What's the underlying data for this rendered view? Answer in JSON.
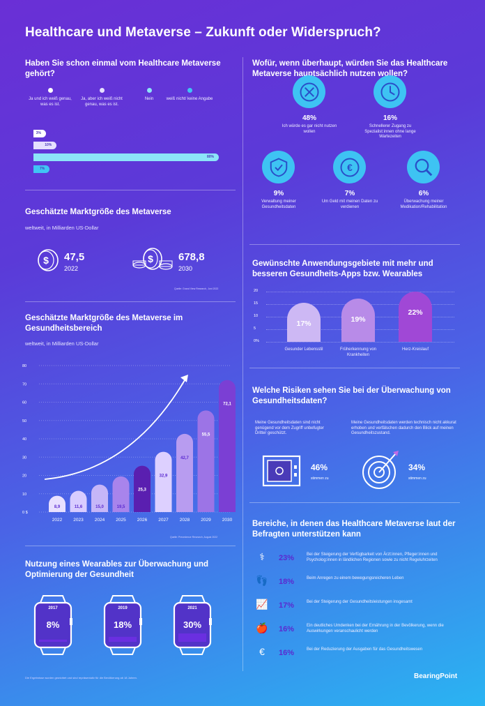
{
  "title": "Healthcare und Metaverse – Zukunft oder Widerspruch?",
  "brand": "BearingPoint",
  "awareness": {
    "title": "Haben Sie schon einmal vom Healthcare Metaverse gehört?",
    "legend": [
      {
        "label": "Ja und ich weiß genau, was es ist.",
        "color": "#ffffff"
      },
      {
        "label": "Ja, aber ich weiß nicht genau, was es ist.",
        "color": "#e6e0ff"
      },
      {
        "label": "Nein",
        "color": "#8ce4f8"
      },
      {
        "label": "weiß nicht/ keine Angabe",
        "color": "#40c4f4"
      }
    ],
    "chart_data": {
      "type": "bar",
      "orientation": "horizontal",
      "categories": [
        "Ja und ich weiß genau, was es ist.",
        "Ja, aber ich weiß nicht genau, was es ist.",
        "Nein",
        "weiß nicht/ keine Angabe"
      ],
      "values": [
        3,
        10,
        80,
        7
      ],
      "labels": [
        "3%",
        "10%",
        "80%",
        "7%"
      ]
    }
  },
  "usage": {
    "title": "Wofür, wenn überhaupt, würden Sie das Healthcare Metaverse hauptsächlich nutzen wollen?",
    "items": [
      {
        "pct": "48%",
        "desc": "Ich würde es gar nicht nutzen wollen",
        "icon": "x-icon"
      },
      {
        "pct": "16%",
        "desc": "Schnellerer Zugang zu Spezialist:innen ohne lange Wartezeiten",
        "icon": "clock-icon"
      },
      {
        "pct": "9%",
        "desc": "Verwaltung meiner Gesundheitsdaten",
        "icon": "shield-check-icon"
      },
      {
        "pct": "7%",
        "desc": "Um Geld mit meinen Daten zu verdienen",
        "icon": "euro-coin-icon"
      },
      {
        "pct": "6%",
        "desc": "Überwachung meiner Medikation/Rehabilitation",
        "icon": "magnifier-icon"
      }
    ]
  },
  "market": {
    "title": "Geschätzte Marktgröße des Metaverse",
    "sub": "weltweit, in Milliarden US-Dollar",
    "items": [
      {
        "value": "47,5",
        "year": "2022"
      },
      {
        "value": "678,8",
        "year": "2030"
      }
    ],
    "source": "Quelle: Grand View Research, Juni 2022"
  },
  "apps": {
    "title": "Gewünschte Anwendungsgebiete mit mehr und besseren Gesundheits-Apps bzw. Wearables",
    "chart_data": {
      "type": "bar",
      "categories": [
        "Gesunder Lebensstil",
        "Früherkennung von Krankheiten",
        "Herz-Kreislauf"
      ],
      "values": [
        17,
        19,
        22
      ],
      "labels": [
        "17%",
        "19%",
        "22%"
      ],
      "yticks": [
        "20",
        "15",
        "10",
        "5",
        "0%"
      ],
      "ylim": [
        0,
        22
      ]
    }
  },
  "health_market": {
    "title": "Geschätzte Marktgröße des Metaverse im Gesundheitsbereich",
    "sub": "weltweit, in Milliarden US-Dollar",
    "source": "Quelle: Precedence Research, August 2022",
    "chart_data": {
      "type": "bar",
      "categories": [
        "2022",
        "2023",
        "2024",
        "2025",
        "2026",
        "2027",
        "2028",
        "2029",
        "2030"
      ],
      "values": [
        8.9,
        11.6,
        15.0,
        19.5,
        25.3,
        32.9,
        42.7,
        55.5,
        72.1
      ],
      "labels": [
        "8,9",
        "11,6",
        "15,0",
        "19,5",
        "25,3",
        "32,9",
        "42,7",
        "55,5",
        "72,1"
      ],
      "yticks": [
        "80",
        "70",
        "60",
        "50",
        "40",
        "30",
        "20",
        "10",
        "0 $"
      ],
      "ylim": [
        0,
        80
      ],
      "colors": [
        "#e8e0ff",
        "#d8ccff",
        "#c6b6f8",
        "#a884ec",
        "#5a1fb0",
        "#ddd0ff",
        "#b89cf0",
        "#9c74e6",
        "#7b3fd4"
      ]
    }
  },
  "risks": {
    "title": "Welche Risiken sehen Sie bei der Überwachung von Gesundheitsdaten?",
    "items": [
      {
        "text": "Meine Gesundheitsdaten sind nicht genügend vor dem Zugriff unbefugter Dritter geschützt.",
        "pct": "46%",
        "sub": "stimmen zu",
        "icon": "safe-icon"
      },
      {
        "text": "Meine Gesundheitsdaten werden technisch nicht akkurat erhoben und verfälschen dadurch den Blick auf meinen Gesundheitszustand.",
        "pct": "34%",
        "sub": "stimmen zu",
        "icon": "target-icon"
      }
    ]
  },
  "wearable": {
    "title": "Nutzung eines Wearables zur Überwachung und Optimierung der Gesundheit",
    "chart_data": {
      "type": "bar",
      "categories": [
        "2017",
        "2019",
        "2021"
      ],
      "values": [
        8,
        18,
        30
      ],
      "labels": [
        "8%",
        "18%",
        "30%"
      ]
    }
  },
  "support": {
    "title": "Bereiche, in denen das Healthcare Metaverse laut der Befragten unterstützen kann",
    "items": [
      {
        "pct": "23%",
        "text": "Bei der Steigerung der Verfügbarkeit von Ärzt:innen, Pfleger:innen und Psycholog:innen in ländlichen Regionen sowie zu nicht Regeluhrzeiten",
        "icon": "stethoscope-icon"
      },
      {
        "pct": "18%",
        "text": "Beim Anregen zu einem bewegungsreicheren Leben",
        "icon": "footprints-icon"
      },
      {
        "pct": "17%",
        "text": "Bei der Steigerung der Gesundheitsleistungen insgesamt",
        "icon": "growth-chart-icon"
      },
      {
        "pct": "16%",
        "text": "Ein deutliches Umdenken bei der Ernährung in der Bevölkerung, wenn die Auswirkungen veranschaulicht werden",
        "icon": "apple-icon"
      },
      {
        "pct": "16%",
        "text": "Bei der Reduzierung der Ausgaben für das Gesundheitswesen",
        "icon": "money-bag-icon"
      }
    ]
  },
  "footnote": "Die Ergebnisse wurden gewichtet und sind repräsentativ für die Bevölkerung ab 18 Jahren."
}
